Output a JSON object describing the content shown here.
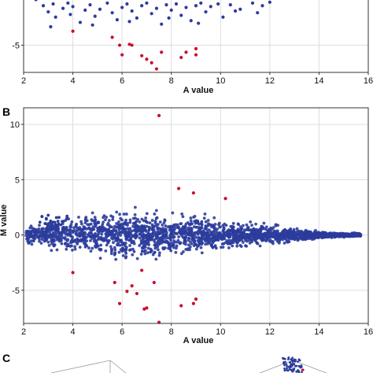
{
  "colors": {
    "normal_points": "#2b3c9c",
    "significant_points": "#c8102e",
    "grid": "#dddddd",
    "frame": "#333333"
  },
  "panels": [
    {
      "letter": "",
      "xlabel": "A value",
      "ylabel": ""
    },
    {
      "letter": "B",
      "xlabel": "A value",
      "ylabel": "M value"
    },
    {
      "letter": "C"
    }
  ],
  "chart_data": [
    {
      "type": "scatter",
      "title": "",
      "xlabel": "A value",
      "ylabel": "",
      "xlim": [
        2,
        16
      ],
      "ylim": [
        -8.1,
        0.6
      ],
      "x_ticks": [
        2,
        4,
        6,
        8,
        10,
        12,
        14,
        16
      ],
      "y_ticks": [
        -5
      ],
      "tick_labels_x": [
        "2",
        "4",
        "6",
        "8",
        "10",
        "12",
        "14",
        "16"
      ],
      "tick_labels_y": [
        "-5"
      ],
      "grid": true,
      "series": [
        {
          "role": "normal",
          "x": [
            2.5,
            2.8,
            3.0,
            3.2,
            3.3,
            3.6,
            3.8,
            3.9,
            4.0,
            4.3,
            4.5,
            4.7,
            4.9,
            5.1,
            5.4,
            5.6,
            5.8,
            6.0,
            6.2,
            6.4,
            6.6,
            6.8,
            7.0,
            7.2,
            7.4,
            7.6,
            7.8,
            8.0,
            8.2,
            8.4,
            8.6,
            8.8,
            9.0,
            9.2,
            9.4,
            9.6,
            9.9,
            10.1,
            10.4,
            10.8,
            11.3,
            11.5,
            11.7,
            12.0,
            3.1,
            4.8,
            6.3,
            7.9,
            9.1,
            10.6
          ],
          "y": [
            0.2,
            -0.5,
            -1.2,
            -0.3,
            -1.8,
            -0.8,
            -0.2,
            -1.5,
            -0.6,
            -2.4,
            -1.0,
            -0.4,
            -1.7,
            -0.9,
            -0.2,
            -1.3,
            -2.1,
            -0.7,
            -0.3,
            -1.1,
            -1.9,
            -0.5,
            -0.2,
            -1.4,
            -0.8,
            -2.6,
            -0.4,
            -1.0,
            -0.3,
            -1.6,
            -0.7,
            -2.2,
            -0.5,
            -0.2,
            -1.2,
            -0.6,
            -0.3,
            -1.8,
            -0.4,
            -0.9,
            -0.2,
            -1.3,
            -0.5,
            -0.1,
            -2.9,
            -2.7,
            -2.3,
            -1.9,
            -2.5,
            -1.1
          ]
        },
        {
          "role": "significant",
          "x": [
            4.0,
            5.6,
            5.9,
            6.0,
            6.3,
            6.4,
            6.8,
            7.0,
            7.2,
            7.4,
            7.6,
            8.4,
            8.6,
            9.0,
            9.0
          ],
          "y": [
            -3.4,
            -4.1,
            -5.0,
            -6.1,
            -4.9,
            -5.0,
            -6.2,
            -6.6,
            -7.0,
            -7.7,
            -5.8,
            -6.4,
            -5.8,
            -5.4,
            -6.1
          ]
        }
      ]
    },
    {
      "type": "scatter",
      "title": "",
      "xlabel": "A value",
      "ylabel": "M value",
      "xlim": [
        2,
        16
      ],
      "ylim": [
        -8,
        11.5
      ],
      "x_ticks": [
        2,
        4,
        6,
        8,
        10,
        12,
        14,
        16
      ],
      "y_ticks": [
        -5,
        0,
        5,
        10
      ],
      "tick_labels_x": [
        "2",
        "4",
        "6",
        "8",
        "10",
        "12",
        "14",
        "16"
      ],
      "tick_labels_y": [
        "-5",
        "0",
        "5",
        "10"
      ],
      "grid": true,
      "series": [
        {
          "role": "significant",
          "x": [
            7.5,
            8.3,
            8.9,
            10.2,
            4.0,
            5.7,
            5.9,
            6.2,
            6.4,
            6.6,
            6.8,
            6.9,
            7.0,
            7.3,
            7.5,
            8.4,
            8.9,
            9.0
          ],
          "y": [
            10.8,
            4.2,
            3.8,
            3.3,
            -3.4,
            -4.3,
            -6.2,
            -5.1,
            -4.6,
            -5.3,
            -3.2,
            -6.7,
            -6.6,
            -4.3,
            -7.9,
            -6.4,
            -6.2,
            -5.8
          ]
        }
      ]
    }
  ]
}
